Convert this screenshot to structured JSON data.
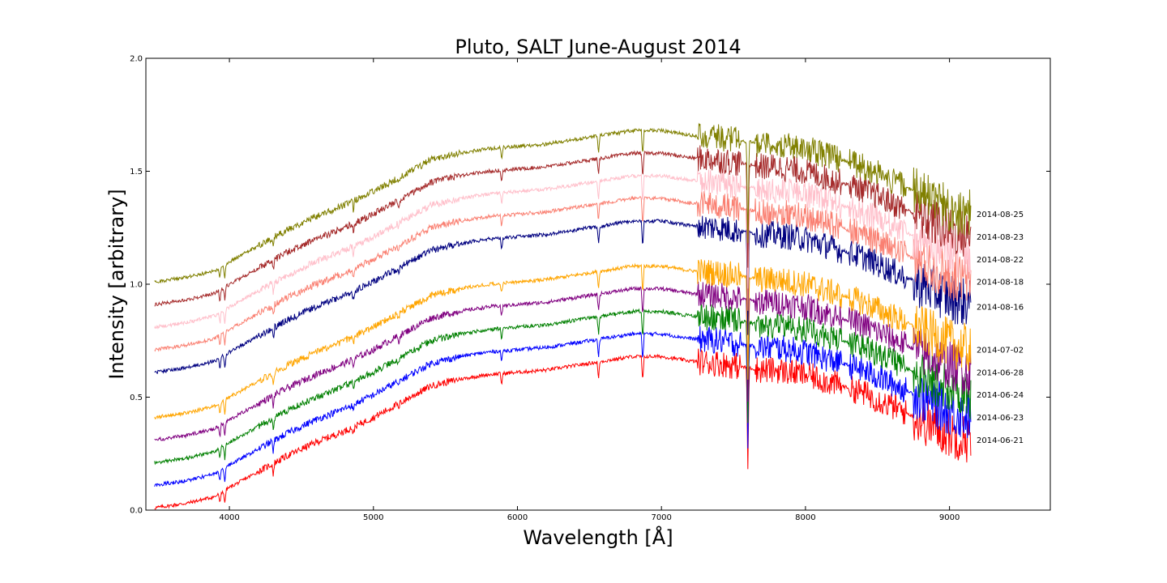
{
  "chart_data": {
    "type": "line",
    "title": "Pluto, SALT June-August 2014",
    "xlabel": "Wavelength [Å]",
    "ylabel": "Intensity [arbitrary]",
    "xlim": [
      3420,
      9700
    ],
    "ylim": [
      0.0,
      2.0
    ],
    "xticks": [
      4000,
      5000,
      6000,
      7000,
      8000,
      9000
    ],
    "yticks": [
      0.0,
      0.5,
      1.0,
      1.5,
      2.0
    ],
    "ytick_labels": [
      "0.0",
      "0.5",
      "1.0",
      "1.5",
      "2.0"
    ],
    "grid": false,
    "legend": "none",
    "series": [
      {
        "name": "2014-06-21",
        "color": "#ff0000",
        "offset": 0.0,
        "end_value": 0.31
      },
      {
        "name": "2014-06-23",
        "color": "#0000ff",
        "offset": 0.1,
        "end_value": 0.41
      },
      {
        "name": "2014-06-24",
        "color": "#008000",
        "offset": 0.2,
        "end_value": 0.51
      },
      {
        "name": "2014-06-28",
        "color": "#800080",
        "offset": 0.3,
        "end_value": 0.61
      },
      {
        "name": "2014-07-02",
        "color": "#ffa500",
        "offset": 0.4,
        "end_value": 0.71
      },
      {
        "name": "2014-08-16",
        "color": "#000080",
        "offset": 0.6,
        "end_value": 0.9
      },
      {
        "name": "2014-08-18",
        "color": "#fa8072",
        "offset": 0.7,
        "end_value": 1.01
      },
      {
        "name": "2014-08-22",
        "color": "#ffc0cb",
        "offset": 0.8,
        "end_value": 1.11
      },
      {
        "name": "2014-08-23",
        "color": "#a52a2a",
        "offset": 0.9,
        "end_value": 1.21
      },
      {
        "name": "2014-08-25",
        "color": "#808000",
        "offset": 1.0,
        "end_value": 1.31
      }
    ],
    "base_spectrum": {
      "x": [
        3480,
        3700,
        3900,
        4000,
        4200,
        4400,
        4600,
        4800,
        5000,
        5200,
        5400,
        5600,
        5800,
        6000,
        6200,
        6400,
        6600,
        6800,
        7000,
        7200,
        7400,
        7600,
        7700,
        7800,
        8000,
        8200,
        8400,
        8600,
        8800,
        9000,
        9150
      ],
      "y": [
        0.01,
        0.03,
        0.06,
        0.1,
        0.17,
        0.24,
        0.3,
        0.35,
        0.41,
        0.48,
        0.55,
        0.58,
        0.6,
        0.61,
        0.62,
        0.64,
        0.66,
        0.68,
        0.68,
        0.66,
        0.65,
        0.63,
        0.62,
        0.62,
        0.6,
        0.56,
        0.52,
        0.46,
        0.4,
        0.34,
        0.31
      ]
    },
    "absorption_features": [
      {
        "x": 3934,
        "depth": 0.05
      },
      {
        "x": 3968,
        "depth": 0.06
      },
      {
        "x": 4305,
        "depth": 0.05
      },
      {
        "x": 4861,
        "depth": 0.04
      },
      {
        "x": 5175,
        "depth": 0.03
      },
      {
        "x": 5890,
        "depth": 0.05
      },
      {
        "x": 6563,
        "depth": 0.08
      },
      {
        "x": 6870,
        "depth": 0.12
      },
      {
        "x": 7600,
        "depth": 0.45
      }
    ]
  }
}
